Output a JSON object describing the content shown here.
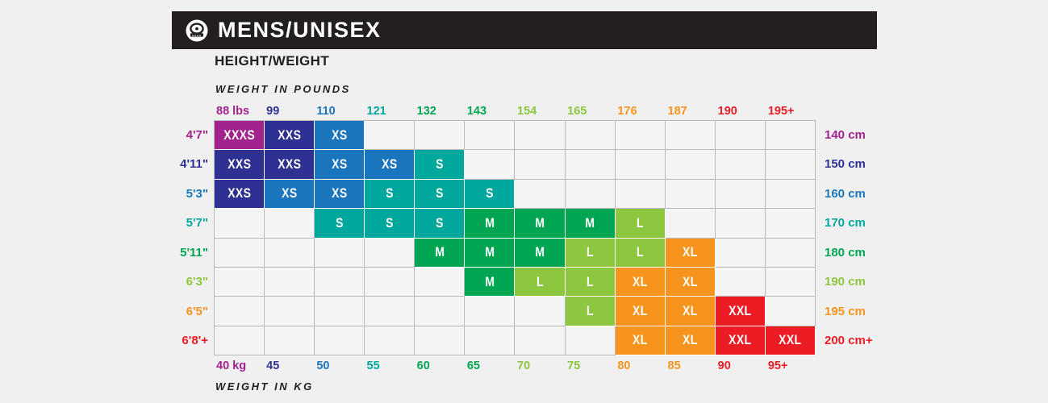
{
  "header": {
    "title": "MENS/UNISEX",
    "icon": "tape-measure-icon"
  },
  "subtitle": "HEIGHT/WEIGHT",
  "chart_data": {
    "type": "table",
    "title": "MENS/UNISEX HEIGHT/WEIGHT size chart",
    "x_axis": {
      "label_top": "WEIGHT IN POUNDS",
      "label_bottom": "WEIGHT IN KG",
      "pounds": [
        "88 lbs",
        "99",
        "110",
        "121",
        "132",
        "143",
        "154",
        "165",
        "176",
        "187",
        "190",
        "195+"
      ],
      "kg": [
        "40 kg",
        "45",
        "50",
        "55",
        "60",
        "65",
        "70",
        "75",
        "80",
        "85",
        "90",
        "95+"
      ]
    },
    "y_axis": {
      "feet": [
        "4'7\"",
        "4'11\"",
        "5'3\"",
        "5'7\"",
        "5'11\"",
        "6'3\"",
        "6'5\"",
        "6'8'+"
      ],
      "cm": [
        "140 cm",
        "150 cm",
        "160 cm",
        "170 cm",
        "180 cm",
        "190 cm",
        "195 cm",
        "200 cm+"
      ]
    },
    "cells": [
      [
        "XXXS",
        "XXS",
        "XS",
        "",
        "",
        "",
        "",
        "",
        "",
        "",
        "",
        ""
      ],
      [
        "XXS",
        "XXS",
        "XS",
        "XS",
        "S",
        "",
        "",
        "",
        "",
        "",
        "",
        ""
      ],
      [
        "XXS",
        "XS",
        "XS",
        "S",
        "S",
        "S",
        "",
        "",
        "",
        "",
        "",
        ""
      ],
      [
        "",
        "",
        "S",
        "S",
        "S",
        "M",
        "M",
        "M",
        "L",
        "",
        "",
        ""
      ],
      [
        "",
        "",
        "",
        "",
        "M",
        "M",
        "M",
        "L",
        "L",
        "XL",
        "",
        ""
      ],
      [
        "",
        "",
        "",
        "",
        "",
        "M",
        "L",
        "L",
        "XL",
        "XL",
        "",
        ""
      ],
      [
        "",
        "",
        "",
        "",
        "",
        "",
        "",
        "L",
        "XL",
        "XL",
        "XXL",
        ""
      ],
      [
        "",
        "",
        "",
        "",
        "",
        "",
        "",
        "",
        "XL",
        "XL",
        "XXL",
        "XXL"
      ]
    ],
    "size_colors": {
      "XXXS": "#A3238E",
      "XXS": "#2E3192",
      "XS": "#1B75BC",
      "S": "#00A79D",
      "M": "#00A551",
      "L": "#8DC63F",
      "XL": "#F7941D",
      "XXL": "#EC1C24"
    },
    "column_colors": [
      "#A3238E",
      "#2E3192",
      "#1B75BC",
      "#00A79D",
      "#00A551",
      "#00A551",
      "#8DC63F",
      "#8DC63F",
      "#F7941D",
      "#F7941D",
      "#EC1C24",
      "#EC1C24"
    ],
    "row_colors": [
      "#A3238E",
      "#2E3192",
      "#1B75BC",
      "#00A79D",
      "#00A551",
      "#8DC63F",
      "#F7941D",
      "#EC1C24"
    ]
  },
  "ui_colors": {
    "header_bg": "#231F20",
    "canvas_bg": "#F0F0F1",
    "grid_line": "#B8BABC",
    "empty_cell": "#F4F4F5",
    "text": "#231F20",
    "cell_text": "#FFFFFF"
  }
}
